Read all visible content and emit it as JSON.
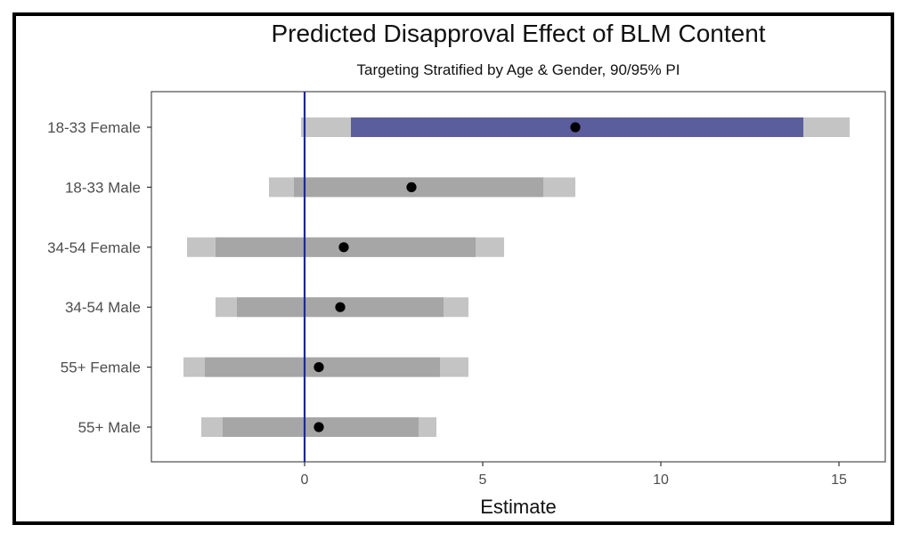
{
  "chart_data": {
    "type": "interval",
    "title": "Predicted Disapproval Effect of BLM Content",
    "subtitle": "Targeting Stratified by Age & Gender, 90/95% PI",
    "xlabel": "Estimate",
    "ylabel": "",
    "xlim": [
      -4.3,
      16.3
    ],
    "xticks": [
      0,
      5,
      10,
      15
    ],
    "reference_line_x": 0,
    "grid": false,
    "categories": [
      "18-33 Female",
      "18-33 Male",
      "34-54 Female",
      "34-54 Male",
      "55+ Female",
      "55+ Male"
    ],
    "series": [
      {
        "estimate": [
          7.6,
          3.0,
          1.1,
          1.0,
          0.4,
          0.4
        ],
        "pi90": [
          [
            1.3,
            14.0
          ],
          [
            -0.3,
            6.7
          ],
          [
            -2.5,
            4.8
          ],
          [
            -1.9,
            3.9
          ],
          [
            -2.8,
            3.8
          ],
          [
            -2.3,
            3.2
          ]
        ],
        "pi95": [
          [
            -0.1,
            15.3
          ],
          [
            -1.0,
            7.6
          ],
          [
            -3.3,
            5.6
          ],
          [
            -2.5,
            4.6
          ],
          [
            -3.4,
            4.6
          ],
          [
            -2.9,
            3.7
          ]
        ]
      }
    ],
    "highlight_category": "18-33 Female",
    "colors": {
      "pi95": "#c4c4c4",
      "pi90": "#a6a6a6",
      "pi90_highlight": "#5b5e9c",
      "point": "#000000",
      "ref_line": "#1f2a8c",
      "panel_border": "#4d4d4d"
    }
  }
}
